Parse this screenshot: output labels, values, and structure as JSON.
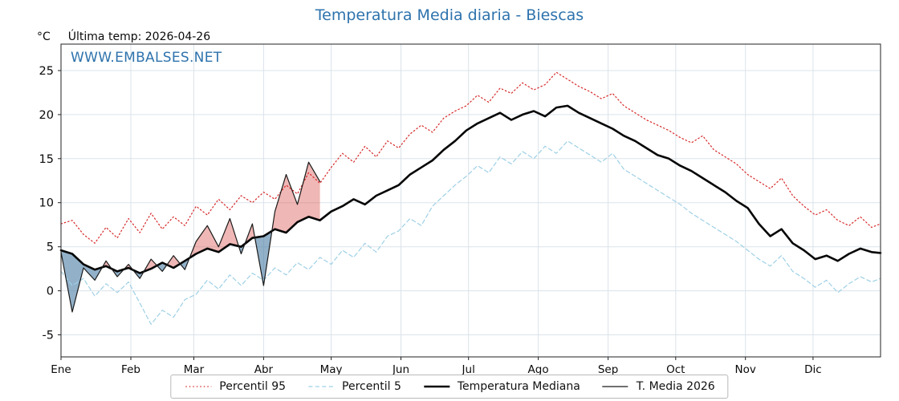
{
  "header": {
    "title": "Temperatura Media diaria - Biescas",
    "unit": "°C",
    "last_temp": "Última temp: 2026-04-26",
    "watermark": "WWW.EMBALSES.NET"
  },
  "colors": {
    "title": "#2e73ad",
    "watermark": "#2e73ad",
    "plot_bg": "#ffffff",
    "grid": "#dbe3ea",
    "spine": "#222222",
    "fill_above": "#d9534f",
    "fill_below": "#4f81a8"
  },
  "chart_data": {
    "type": "line",
    "title": "Temperatura Media diaria - Biescas",
    "xlabel": "",
    "ylabel": "°C",
    "ylim": [
      -7.5,
      28
    ],
    "yticks": [
      -5,
      0,
      5,
      10,
      15,
      20,
      25
    ],
    "xlim_days": [
      1,
      365
    ],
    "grid": true,
    "legend_position": "bottom",
    "month_ticks": {
      "labels": [
        "Ene",
        "Feb",
        "Mar",
        "Abr",
        "May",
        "Jun",
        "Jul",
        "Ago",
        "Sep",
        "Oct",
        "Nov",
        "Dic"
      ],
      "day_of_year": [
        1,
        32,
        60,
        91,
        121,
        152,
        182,
        213,
        244,
        274,
        305,
        335
      ]
    },
    "fills": {
      "between": [
        "T. Media 2026",
        "Temperatura Mediana"
      ],
      "above_color": "#d9534f",
      "below_color": "#4f81a8"
    },
    "series": [
      {
        "name": "Percentil 95",
        "color": "#d62728",
        "style": "dotted",
        "dash": "1.5 3",
        "width": 1.2,
        "days": [
          1,
          6,
          11,
          16,
          21,
          26,
          31,
          36,
          41,
          46,
          51,
          56,
          61,
          66,
          71,
          76,
          81,
          86,
          91,
          96,
          101,
          106,
          111,
          116,
          121,
          126,
          131,
          136,
          141,
          146,
          151,
          156,
          161,
          166,
          171,
          176,
          181,
          186,
          191,
          196,
          201,
          206,
          211,
          216,
          221,
          226,
          231,
          236,
          241,
          246,
          251,
          256,
          261,
          266,
          271,
          276,
          281,
          286,
          291,
          296,
          301,
          306,
          311,
          316,
          321,
          326,
          331,
          336,
          341,
          346,
          351,
          356,
          361,
          365
        ],
        "values": [
          7.6,
          8.0,
          6.4,
          5.4,
          7.2,
          6.0,
          8.2,
          6.6,
          8.8,
          7.0,
          8.4,
          7.4,
          9.6,
          8.6,
          10.4,
          9.2,
          10.8,
          10.0,
          11.2,
          10.4,
          12.0,
          11.0,
          13.4,
          12.2,
          14.0,
          15.6,
          14.6,
          16.4,
          15.2,
          17.0,
          16.2,
          17.8,
          18.8,
          18.0,
          19.6,
          20.4,
          21.0,
          22.2,
          21.4,
          23.0,
          22.4,
          23.6,
          22.8,
          23.4,
          24.8,
          24.0,
          23.2,
          22.6,
          21.8,
          22.4,
          21.0,
          20.2,
          19.4,
          18.8,
          18.2,
          17.4,
          16.8,
          17.6,
          16.0,
          15.2,
          14.4,
          13.2,
          12.4,
          11.6,
          12.8,
          10.8,
          9.6,
          8.6,
          9.2,
          8.0,
          7.4,
          8.4,
          7.2,
          7.6
        ]
      },
      {
        "name": "Percentil 5",
        "color": "#9ed0e6",
        "style": "dashed",
        "dash": "5 3.5",
        "width": 1.2,
        "days": [
          1,
          6,
          11,
          16,
          21,
          26,
          31,
          36,
          41,
          46,
          51,
          56,
          61,
          66,
          71,
          76,
          81,
          86,
          91,
          96,
          101,
          106,
          111,
          116,
          121,
          126,
          131,
          136,
          141,
          146,
          151,
          156,
          161,
          166,
          171,
          176,
          181,
          186,
          191,
          196,
          201,
          206,
          211,
          216,
          221,
          226,
          231,
          236,
          241,
          246,
          251,
          256,
          261,
          266,
          271,
          276,
          281,
          286,
          291,
          296,
          301,
          306,
          311,
          316,
          321,
          326,
          331,
          336,
          341,
          346,
          351,
          356,
          361,
          365
        ],
        "values": [
          2.2,
          0.6,
          1.4,
          -0.6,
          0.8,
          -0.2,
          1.0,
          -1.4,
          -3.8,
          -2.2,
          -3.0,
          -1.0,
          -0.4,
          1.2,
          0.2,
          1.8,
          0.6,
          2.0,
          1.2,
          2.6,
          1.8,
          3.2,
          2.4,
          3.8,
          3.0,
          4.6,
          3.8,
          5.4,
          4.4,
          6.2,
          6.8,
          8.2,
          7.4,
          9.6,
          10.8,
          12.0,
          13.0,
          14.2,
          13.4,
          15.2,
          14.4,
          15.8,
          15.0,
          16.4,
          15.6,
          17.0,
          16.2,
          15.4,
          14.6,
          15.6,
          13.8,
          13.0,
          12.2,
          11.4,
          10.6,
          9.8,
          8.8,
          8.0,
          7.2,
          6.4,
          5.6,
          4.6,
          3.6,
          2.8,
          4.0,
          2.2,
          1.4,
          0.4,
          1.2,
          -0.2,
          0.8,
          1.6,
          1.0,
          1.4
        ]
      },
      {
        "name": "Temperatura Mediana",
        "color": "#050505",
        "style": "solid",
        "dash": "",
        "width": 2.6,
        "days": [
          1,
          6,
          11,
          16,
          21,
          26,
          31,
          36,
          41,
          46,
          51,
          56,
          61,
          66,
          71,
          76,
          81,
          86,
          91,
          96,
          101,
          106,
          111,
          116,
          121,
          126,
          131,
          136,
          141,
          146,
          151,
          156,
          161,
          166,
          171,
          176,
          181,
          186,
          191,
          196,
          201,
          206,
          211,
          216,
          221,
          226,
          231,
          236,
          241,
          246,
          251,
          256,
          261,
          266,
          271,
          276,
          281,
          286,
          291,
          296,
          301,
          306,
          311,
          316,
          321,
          326,
          331,
          336,
          341,
          346,
          351,
          356,
          361,
          365
        ],
        "values": [
          4.6,
          4.2,
          3.0,
          2.4,
          2.8,
          2.2,
          2.6,
          2.0,
          2.5,
          3.2,
          2.6,
          3.4,
          4.2,
          4.8,
          4.4,
          5.3,
          5.0,
          6.0,
          6.2,
          7.0,
          6.6,
          7.8,
          8.4,
          8.0,
          9.0,
          9.6,
          10.4,
          9.8,
          10.8,
          11.4,
          12.0,
          13.2,
          14.0,
          14.8,
          16.0,
          17.0,
          18.2,
          19.0,
          19.6,
          20.2,
          19.4,
          20.0,
          20.4,
          19.8,
          20.8,
          21.0,
          20.2,
          19.6,
          19.0,
          18.4,
          17.6,
          17.0,
          16.2,
          15.4,
          15.0,
          14.2,
          13.6,
          12.8,
          12.0,
          11.2,
          10.2,
          9.4,
          7.6,
          6.2,
          7.0,
          5.4,
          4.6,
          3.6,
          4.0,
          3.4,
          4.2,
          4.8,
          4.4,
          4.3
        ]
      },
      {
        "name": "T. Media 2026",
        "color": "#1a1a1a",
        "style": "solid",
        "dash": "",
        "width": 1.2,
        "days": [
          1,
          6,
          11,
          16,
          21,
          26,
          31,
          36,
          41,
          46,
          51,
          56,
          61,
          66,
          71,
          76,
          81,
          86,
          91,
          96,
          101,
          106,
          111,
          116
        ],
        "values": [
          4.4,
          -2.4,
          2.6,
          1.2,
          3.4,
          1.6,
          3.0,
          1.4,
          3.6,
          2.2,
          4.0,
          2.4,
          5.6,
          7.4,
          5.0,
          8.2,
          4.2,
          7.6,
          0.6,
          9.0,
          13.2,
          9.8,
          14.6,
          12.4
        ]
      }
    ]
  }
}
